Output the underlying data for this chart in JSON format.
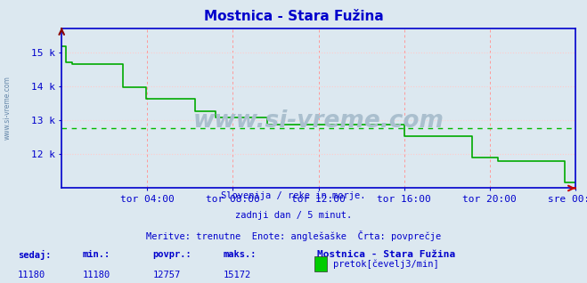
{
  "title": "Mostnica - Stara Fužina",
  "bg_color": "#dce8f0",
  "plot_bg_color": "#dce8f0",
  "line_color": "#00aa00",
  "avg_line_color": "#00bb00",
  "avg_value": 12757,
  "min_value": 11180,
  "max_value": 15172,
  "ylim_min": 11000,
  "ylim_max": 15700,
  "yticks": [
    12000,
    13000,
    14000,
    15000
  ],
  "ytick_labels": [
    "12 k",
    "13 k",
    "14 k",
    "15 k"
  ],
  "watermark_text": "www.si-vreme.com",
  "subtitle1": "Slovenija / reke in morje.",
  "subtitle2": "zadnji dan / 5 minut.",
  "subtitle3": "Meritve: trenutne  Enote: anglešaške  Črta: povprečje",
  "footer_labels": [
    "sedaj:",
    "min.:",
    "povpr.:",
    "maks.:"
  ],
  "footer_values": [
    "11180",
    "11180",
    "12757",
    "15172"
  ],
  "footer_station": "Mostnica - Stara Fužina",
  "footer_legend": "pretok[čevelj3/min]",
  "legend_color": "#00cc00",
  "x_tick_labels": [
    "tor 04:00",
    "tor 08:00",
    "tor 12:00",
    "tor 16:00",
    "tor 20:00",
    "sre 00:00"
  ],
  "x_tick_positions": [
    0.167,
    0.333,
    0.5,
    0.667,
    0.833,
    1.0
  ],
  "grid_color_v": "#ff9999",
  "grid_color_h": "#ffcccc",
  "axis_color": "#0000cc",
  "text_color": "#0000cc",
  "watermark_color": "#aabfce",
  "side_watermark_color": "#6688aa",
  "data_x": [
    0.0,
    0.005,
    0.008,
    0.02,
    0.05,
    0.1,
    0.12,
    0.14,
    0.165,
    0.19,
    0.22,
    0.26,
    0.28,
    0.3,
    0.32,
    0.35,
    0.4,
    0.44,
    0.47,
    0.5,
    0.55,
    0.6,
    0.65,
    0.667,
    0.7,
    0.75,
    0.8,
    0.82,
    0.85,
    0.87,
    0.9,
    0.92,
    0.95,
    0.98,
    1.0
  ],
  "data_y": [
    15172,
    15172,
    14700,
    14650,
    14650,
    14650,
    13980,
    13980,
    13640,
    13640,
    13640,
    13250,
    13250,
    13080,
    13080,
    13080,
    12870,
    12870,
    12870,
    12870,
    12870,
    12870,
    12870,
    12540,
    12540,
    12540,
    11900,
    11900,
    11810,
    11810,
    11810,
    11800,
    11800,
    11180,
    11180
  ]
}
